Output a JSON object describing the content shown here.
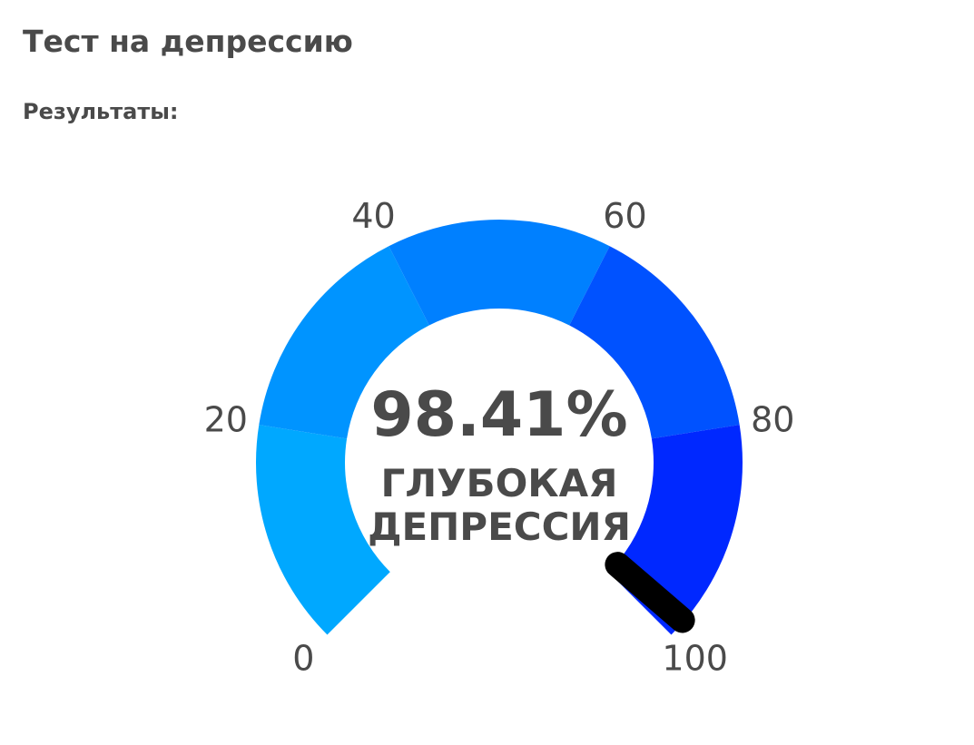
{
  "chart_data": {
    "type": "gauge",
    "title": "Тест на депрессию",
    "subtitle": "Результаты:",
    "value": 98.41,
    "value_label": "98.41%",
    "status": [
      "ГЛУБОКАЯ",
      "ДЕПРЕССИЯ"
    ],
    "range": [
      0,
      100
    ],
    "ticks": [
      0,
      20,
      40,
      60,
      80,
      100
    ],
    "bands": [
      {
        "from": 0,
        "to": 20,
        "color": "#00a8ff"
      },
      {
        "from": 20,
        "to": 40,
        "color": "#0094ff"
      },
      {
        "from": 40,
        "to": 60,
        "color": "#0080ff"
      },
      {
        "from": 60,
        "to": 80,
        "color": "#0052ff"
      },
      {
        "from": 80,
        "to": 100,
        "color": "#0028ff"
      }
    ],
    "needle_color": "#000000"
  }
}
